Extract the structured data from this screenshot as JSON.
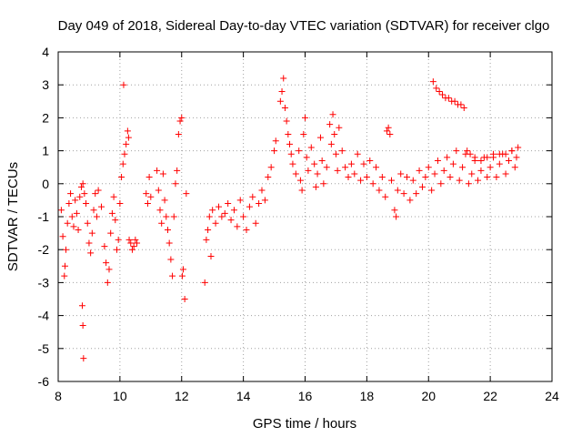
{
  "chart_data": {
    "type": "scatter",
    "title": "Day 049 of 2018, Sidereal Day-to-day VTEC variation (SDTVAR) for receiver clgo",
    "xlabel": "GPS time / hours",
    "ylabel": "SDTVAR / TECUs",
    "xlim": [
      8,
      24
    ],
    "ylim": [
      -6,
      4
    ],
    "xticks": [
      8,
      10,
      12,
      14,
      16,
      18,
      20,
      22,
      24
    ],
    "yticks": [
      -6,
      -5,
      -4,
      -3,
      -2,
      -1,
      0,
      1,
      2,
      3,
      4
    ],
    "grid": true,
    "marker": "+",
    "series": [
      {
        "name": "clgo",
        "color": "#ff0000",
        "points": [
          [
            8.1,
            -0.8
          ],
          [
            8.15,
            -1.6
          ],
          [
            8.2,
            -2.8
          ],
          [
            8.22,
            -2.5
          ],
          [
            8.25,
            -2.0
          ],
          [
            8.3,
            -1.2
          ],
          [
            8.35,
            -0.6
          ],
          [
            8.4,
            -0.3
          ],
          [
            8.45,
            -1.0
          ],
          [
            8.5,
            -1.3
          ],
          [
            8.55,
            -0.5
          ],
          [
            8.6,
            -0.9
          ],
          [
            8.65,
            -1.4
          ],
          [
            8.7,
            -0.4
          ],
          [
            8.75,
            -0.1
          ],
          [
            8.8,
            0.0
          ],
          [
            8.85,
            -0.3
          ],
          [
            8.78,
            -3.7
          ],
          [
            8.8,
            -4.3
          ],
          [
            8.82,
            -5.3
          ],
          [
            8.9,
            -0.6
          ],
          [
            8.95,
            -1.2
          ],
          [
            9.0,
            -1.8
          ],
          [
            9.05,
            -2.1
          ],
          [
            9.1,
            -1.5
          ],
          [
            9.15,
            -0.8
          ],
          [
            9.2,
            -0.3
          ],
          [
            9.25,
            -1.0
          ],
          [
            9.3,
            -0.2
          ],
          [
            9.4,
            -0.7
          ],
          [
            9.5,
            -1.9
          ],
          [
            9.55,
            -2.4
          ],
          [
            9.6,
            -3.0
          ],
          [
            9.65,
            -2.6
          ],
          [
            9.7,
            -1.5
          ],
          [
            9.75,
            -0.9
          ],
          [
            9.8,
            -0.4
          ],
          [
            9.85,
            -1.1
          ],
          [
            9.9,
            -2.0
          ],
          [
            9.95,
            -1.7
          ],
          [
            10.0,
            -0.6
          ],
          [
            10.05,
            0.2
          ],
          [
            10.1,
            0.6
          ],
          [
            10.12,
            3.0
          ],
          [
            10.15,
            0.9
          ],
          [
            10.2,
            1.2
          ],
          [
            10.25,
            1.6
          ],
          [
            10.28,
            1.4
          ],
          [
            10.3,
            -1.7
          ],
          [
            10.35,
            -1.8
          ],
          [
            10.4,
            -2.0
          ],
          [
            10.45,
            -1.9
          ],
          [
            10.5,
            -1.7
          ],
          [
            10.55,
            -1.8
          ],
          [
            10.85,
            -0.3
          ],
          [
            10.9,
            -0.6
          ],
          [
            10.95,
            0.2
          ],
          [
            11.0,
            -0.4
          ],
          [
            11.2,
            0.4
          ],
          [
            11.25,
            -0.2
          ],
          [
            11.3,
            -0.8
          ],
          [
            11.35,
            -1.2
          ],
          [
            11.4,
            0.3
          ],
          [
            11.45,
            -0.5
          ],
          [
            11.5,
            -1.0
          ],
          [
            11.55,
            -1.4
          ],
          [
            11.6,
            -1.8
          ],
          [
            11.65,
            -2.3
          ],
          [
            11.7,
            -2.8
          ],
          [
            11.75,
            -1.0
          ],
          [
            11.8,
            0.0
          ],
          [
            11.85,
            0.4
          ],
          [
            11.9,
            1.5
          ],
          [
            11.95,
            1.9
          ],
          [
            12.0,
            2.0
          ],
          [
            12.02,
            -2.8
          ],
          [
            12.05,
            -2.6
          ],
          [
            12.1,
            -3.5
          ],
          [
            12.15,
            -0.3
          ],
          [
            12.75,
            -3.0
          ],
          [
            12.8,
            -1.7
          ],
          [
            12.85,
            -1.4
          ],
          [
            12.9,
            -1.0
          ],
          [
            12.95,
            -2.2
          ],
          [
            13.0,
            -0.8
          ],
          [
            13.1,
            -1.2
          ],
          [
            13.2,
            -0.7
          ],
          [
            13.3,
            -1.0
          ],
          [
            13.4,
            -0.9
          ],
          [
            13.5,
            -0.6
          ],
          [
            13.6,
            -1.1
          ],
          [
            13.7,
            -0.8
          ],
          [
            13.8,
            -1.3
          ],
          [
            13.9,
            -0.5
          ],
          [
            14.0,
            -1.0
          ],
          [
            14.1,
            -1.4
          ],
          [
            14.2,
            -0.7
          ],
          [
            14.3,
            -0.4
          ],
          [
            14.4,
            -1.2
          ],
          [
            14.5,
            -0.6
          ],
          [
            14.6,
            -0.2
          ],
          [
            14.7,
            -0.5
          ],
          [
            14.8,
            0.2
          ],
          [
            14.9,
            0.5
          ],
          [
            15.0,
            1.0
          ],
          [
            15.05,
            1.3
          ],
          [
            15.2,
            2.5
          ],
          [
            15.25,
            2.8
          ],
          [
            15.3,
            3.2
          ],
          [
            15.35,
            2.3
          ],
          [
            15.4,
            1.9
          ],
          [
            15.45,
            1.5
          ],
          [
            15.5,
            1.2
          ],
          [
            15.55,
            0.9
          ],
          [
            15.6,
            0.6
          ],
          [
            15.7,
            0.3
          ],
          [
            15.8,
            1.0
          ],
          [
            15.85,
            0.1
          ],
          [
            15.9,
            -0.2
          ],
          [
            15.95,
            1.5
          ],
          [
            16.0,
            2.0
          ],
          [
            16.05,
            0.8
          ],
          [
            16.1,
            0.4
          ],
          [
            16.2,
            1.1
          ],
          [
            16.3,
            0.6
          ],
          [
            16.35,
            -0.1
          ],
          [
            16.4,
            0.3
          ],
          [
            16.5,
            1.4
          ],
          [
            16.55,
            0.7
          ],
          [
            16.6,
            0.0
          ],
          [
            16.7,
            0.5
          ],
          [
            16.8,
            1.8
          ],
          [
            16.85,
            1.2
          ],
          [
            16.9,
            2.1
          ],
          [
            16.95,
            1.5
          ],
          [
            17.0,
            0.9
          ],
          [
            17.05,
            0.4
          ],
          [
            17.1,
            1.7
          ],
          [
            17.2,
            1.0
          ],
          [
            17.3,
            0.5
          ],
          [
            17.4,
            0.2
          ],
          [
            17.5,
            0.6
          ],
          [
            17.6,
            0.3
          ],
          [
            17.7,
            0.9
          ],
          [
            17.8,
            0.1
          ],
          [
            17.9,
            0.6
          ],
          [
            18.0,
            0.2
          ],
          [
            18.1,
            0.7
          ],
          [
            18.2,
            0.0
          ],
          [
            18.3,
            0.5
          ],
          [
            18.4,
            -0.2
          ],
          [
            18.5,
            0.2
          ],
          [
            18.6,
            -0.4
          ],
          [
            18.65,
            1.6
          ],
          [
            18.7,
            1.7
          ],
          [
            18.75,
            1.5
          ],
          [
            18.8,
            0.1
          ],
          [
            18.9,
            -0.8
          ],
          [
            18.95,
            -1.0
          ],
          [
            19.0,
            -0.2
          ],
          [
            19.1,
            0.3
          ],
          [
            19.2,
            -0.3
          ],
          [
            19.3,
            0.2
          ],
          [
            19.4,
            -0.5
          ],
          [
            19.5,
            0.1
          ],
          [
            19.6,
            -0.3
          ],
          [
            19.7,
            0.4
          ],
          [
            19.8,
            -0.1
          ],
          [
            19.9,
            0.2
          ],
          [
            20.0,
            0.5
          ],
          [
            20.1,
            -0.2
          ],
          [
            20.2,
            0.3
          ],
          [
            20.3,
            0.7
          ],
          [
            20.4,
            0.0
          ],
          [
            20.5,
            0.4
          ],
          [
            20.6,
            0.8
          ],
          [
            20.7,
            0.2
          ],
          [
            20.8,
            0.6
          ],
          [
            20.9,
            1.0
          ],
          [
            21.0,
            0.1
          ],
          [
            21.1,
            0.5
          ],
          [
            21.2,
            0.9
          ],
          [
            21.3,
            0.0
          ],
          [
            21.4,
            0.3
          ],
          [
            21.5,
            0.7
          ],
          [
            21.6,
            0.1
          ],
          [
            21.7,
            0.4
          ],
          [
            21.8,
            0.8
          ],
          [
            21.9,
            0.2
          ],
          [
            22.0,
            0.5
          ],
          [
            22.1,
            0.9
          ],
          [
            22.2,
            0.2
          ],
          [
            22.3,
            0.6
          ],
          [
            22.4,
            0.9
          ],
          [
            22.5,
            0.3
          ],
          [
            22.6,
            0.7
          ],
          [
            22.7,
            1.0
          ],
          [
            22.8,
            0.5
          ],
          [
            22.85,
            0.8
          ],
          [
            22.9,
            1.1
          ],
          [
            20.15,
            3.1
          ],
          [
            20.25,
            2.9
          ],
          [
            20.35,
            2.8
          ],
          [
            20.45,
            2.7
          ],
          [
            20.55,
            2.6
          ],
          [
            20.65,
            2.6
          ],
          [
            20.75,
            2.5
          ],
          [
            20.85,
            2.5
          ],
          [
            20.95,
            2.4
          ],
          [
            21.05,
            2.4
          ],
          [
            21.15,
            2.3
          ],
          [
            21.25,
            1.0
          ],
          [
            21.35,
            0.9
          ],
          [
            21.5,
            0.8
          ],
          [
            21.7,
            0.7
          ],
          [
            21.9,
            0.8
          ],
          [
            22.1,
            0.8
          ],
          [
            22.3,
            0.9
          ],
          [
            22.5,
            0.9
          ],
          [
            22.7,
            1.0
          ]
        ]
      }
    ]
  }
}
